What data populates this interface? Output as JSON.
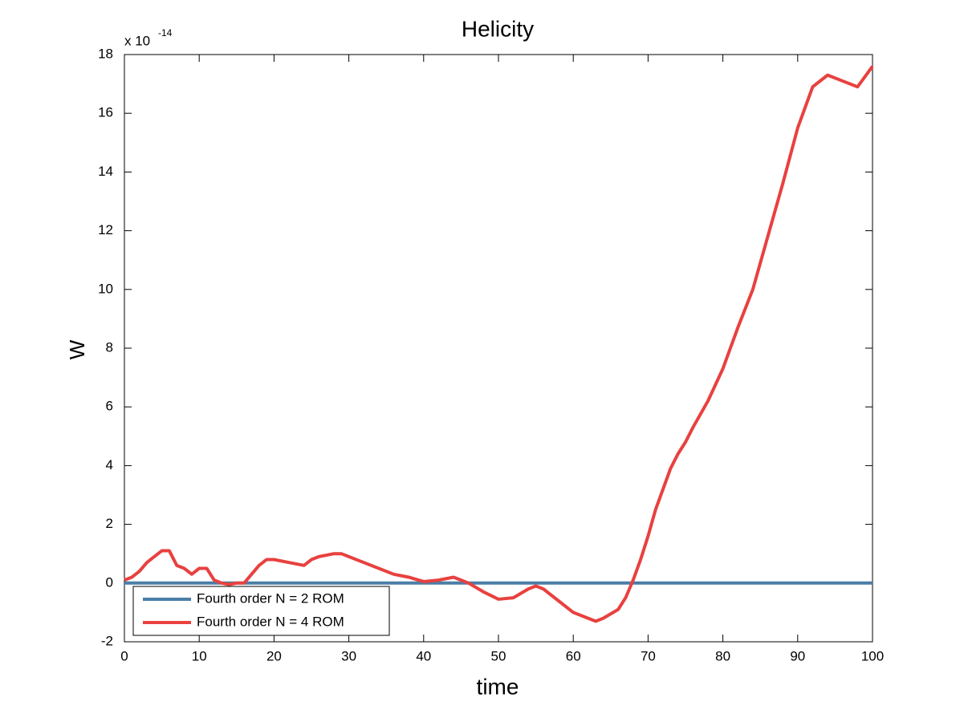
{
  "chart_data": {
    "type": "line",
    "title": "Helicity",
    "xlabel": "time",
    "ylabel": "W",
    "y_exponent": {
      "base": "x 10",
      "power": "-14"
    },
    "xlim": [
      0,
      100
    ],
    "ylim": [
      -2,
      18
    ],
    "xticks": [
      0,
      10,
      20,
      30,
      40,
      50,
      60,
      70,
      80,
      90,
      100
    ],
    "yticks": [
      -2,
      0,
      2,
      4,
      6,
      8,
      10,
      12,
      14,
      16,
      18
    ],
    "grid": false,
    "legend_position": "lower-left",
    "series": [
      {
        "name": "Fourth order N = 2 ROM",
        "color": "#4a7ea8",
        "x": [
          0,
          100
        ],
        "values": [
          0,
          0
        ]
      },
      {
        "name": "Fourth order N = 4 ROM",
        "color": "#e8413f",
        "x": [
          0,
          1,
          2,
          3,
          4,
          5,
          6,
          7,
          8,
          9,
          10,
          11,
          12,
          13,
          14,
          15,
          16,
          17,
          18,
          19,
          20,
          22,
          24,
          25,
          26,
          28,
          29,
          30,
          32,
          34,
          36,
          38,
          40,
          42,
          44,
          45,
          46,
          48,
          50,
          52,
          54,
          55,
          56,
          58,
          60,
          62,
          63,
          64,
          66,
          67,
          68,
          69,
          70,
          71,
          72,
          73,
          74,
          75,
          76,
          78,
          80,
          82,
          84,
          86,
          88,
          90,
          92,
          94,
          96,
          98,
          100
        ],
        "values": [
          0.1,
          0.2,
          0.4,
          0.7,
          0.9,
          1.1,
          1.1,
          0.6,
          0.5,
          0.3,
          0.5,
          0.5,
          0.1,
          0,
          -0.05,
          0,
          0,
          0.3,
          0.6,
          0.8,
          0.8,
          0.7,
          0.6,
          0.8,
          0.9,
          1.0,
          1.0,
          0.9,
          0.7,
          0.5,
          0.3,
          0.2,
          0.05,
          0.1,
          0.2,
          0.1,
          0,
          -0.3,
          -0.55,
          -0.5,
          -0.2,
          -0.1,
          -0.2,
          -0.6,
          -1.0,
          -1.2,
          -1.3,
          -1.2,
          -0.9,
          -0.5,
          0.1,
          0.8,
          1.6,
          2.5,
          3.2,
          3.9,
          4.4,
          4.8,
          5.3,
          6.2,
          7.3,
          8.7,
          10.0,
          11.8,
          13.6,
          15.5,
          16.9,
          17.3,
          17.1,
          16.9,
          17.6
        ]
      }
    ]
  }
}
